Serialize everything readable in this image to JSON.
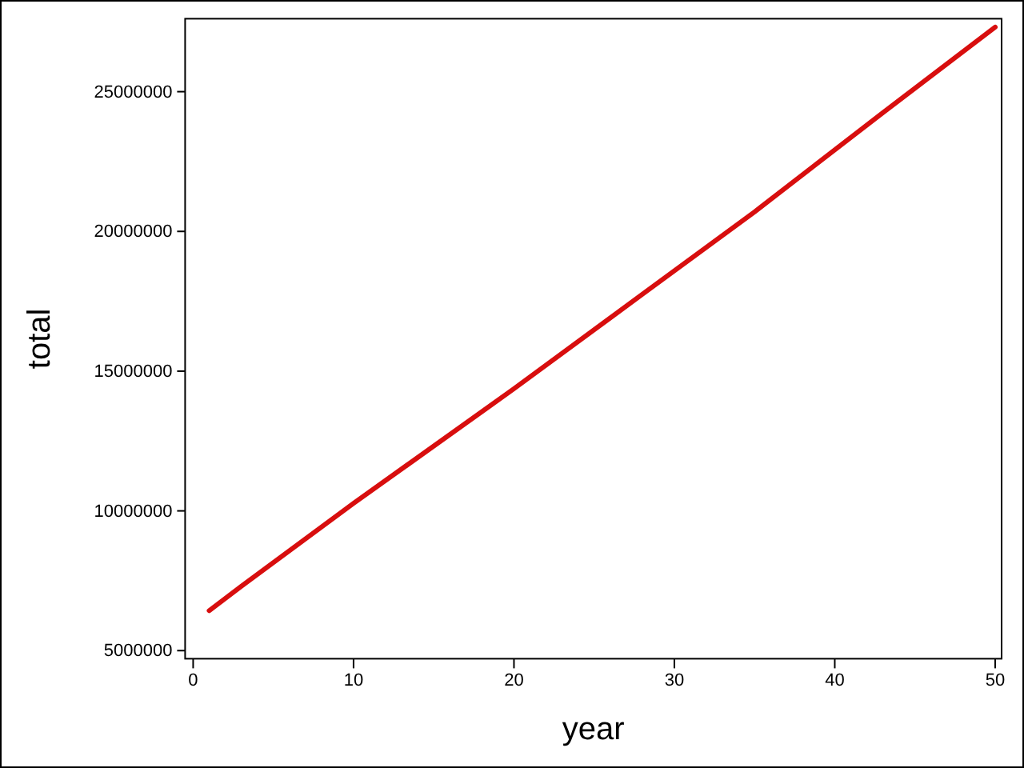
{
  "chart_data": {
    "type": "line",
    "xlabel": "year",
    "ylabel": "total",
    "x": [
      1,
      3,
      10,
      20,
      28,
      35,
      43,
      50
    ],
    "series": [
      {
        "color": "#d80e0e",
        "values": [
          6430000,
          7300000,
          10270000,
          14370000,
          17750000,
          20700000,
          24250000,
          27310000
        ]
      }
    ],
    "line_style": "solid",
    "xlim": [
      -0.5,
      50.4
    ],
    "ylim": [
      4710000,
      27610000
    ],
    "xticks": [
      0,
      10,
      20,
      30,
      40,
      50
    ],
    "yticks": [
      5000000,
      10000000,
      15000000,
      20000000,
      25000000
    ]
  }
}
